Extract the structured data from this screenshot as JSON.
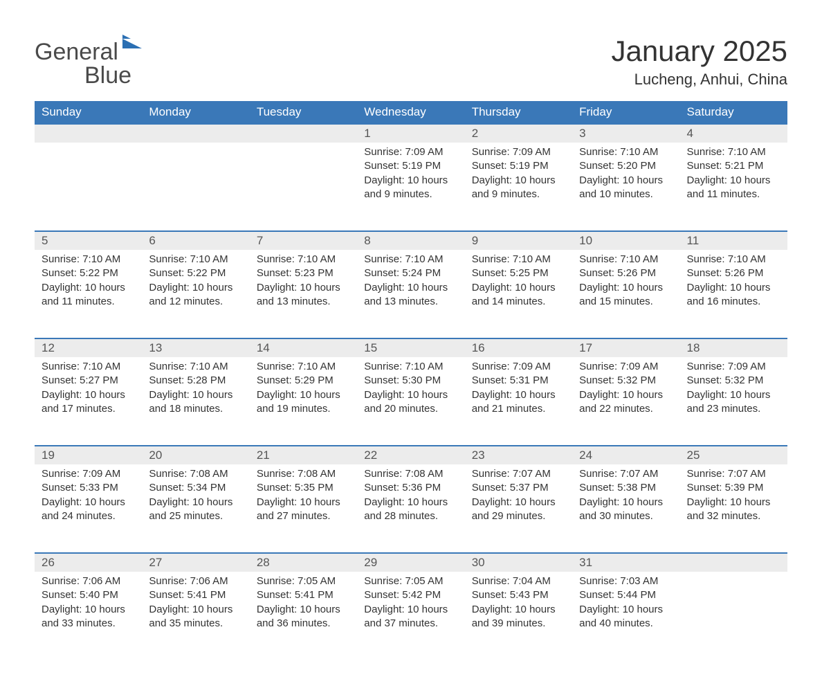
{
  "logo": {
    "word1": "General",
    "word2": "Blue"
  },
  "header": {
    "month_title": "January 2025",
    "location": "Lucheng, Anhui, China"
  },
  "colors": {
    "header_bg": "#3a78b8",
    "header_text": "#ffffff",
    "daynum_bg": "#ececec",
    "row_border": "#3a78b8",
    "body_text": "#333333",
    "logo_gray": "#4a4a4a",
    "logo_blue": "#2b6fb3"
  },
  "weekdays": [
    "Sunday",
    "Monday",
    "Tuesday",
    "Wednesday",
    "Thursday",
    "Friday",
    "Saturday"
  ],
  "weeks": [
    [
      null,
      null,
      null,
      {
        "day": "1",
        "sunrise": "Sunrise: 7:09 AM",
        "sunset": "Sunset: 5:19 PM",
        "daylight1": "Daylight: 10 hours",
        "daylight2": "and 9 minutes."
      },
      {
        "day": "2",
        "sunrise": "Sunrise: 7:09 AM",
        "sunset": "Sunset: 5:19 PM",
        "daylight1": "Daylight: 10 hours",
        "daylight2": "and 9 minutes."
      },
      {
        "day": "3",
        "sunrise": "Sunrise: 7:10 AM",
        "sunset": "Sunset: 5:20 PM",
        "daylight1": "Daylight: 10 hours",
        "daylight2": "and 10 minutes."
      },
      {
        "day": "4",
        "sunrise": "Sunrise: 7:10 AM",
        "sunset": "Sunset: 5:21 PM",
        "daylight1": "Daylight: 10 hours",
        "daylight2": "and 11 minutes."
      }
    ],
    [
      {
        "day": "5",
        "sunrise": "Sunrise: 7:10 AM",
        "sunset": "Sunset: 5:22 PM",
        "daylight1": "Daylight: 10 hours",
        "daylight2": "and 11 minutes."
      },
      {
        "day": "6",
        "sunrise": "Sunrise: 7:10 AM",
        "sunset": "Sunset: 5:22 PM",
        "daylight1": "Daylight: 10 hours",
        "daylight2": "and 12 minutes."
      },
      {
        "day": "7",
        "sunrise": "Sunrise: 7:10 AM",
        "sunset": "Sunset: 5:23 PM",
        "daylight1": "Daylight: 10 hours",
        "daylight2": "and 13 minutes."
      },
      {
        "day": "8",
        "sunrise": "Sunrise: 7:10 AM",
        "sunset": "Sunset: 5:24 PM",
        "daylight1": "Daylight: 10 hours",
        "daylight2": "and 13 minutes."
      },
      {
        "day": "9",
        "sunrise": "Sunrise: 7:10 AM",
        "sunset": "Sunset: 5:25 PM",
        "daylight1": "Daylight: 10 hours",
        "daylight2": "and 14 minutes."
      },
      {
        "day": "10",
        "sunrise": "Sunrise: 7:10 AM",
        "sunset": "Sunset: 5:26 PM",
        "daylight1": "Daylight: 10 hours",
        "daylight2": "and 15 minutes."
      },
      {
        "day": "11",
        "sunrise": "Sunrise: 7:10 AM",
        "sunset": "Sunset: 5:26 PM",
        "daylight1": "Daylight: 10 hours",
        "daylight2": "and 16 minutes."
      }
    ],
    [
      {
        "day": "12",
        "sunrise": "Sunrise: 7:10 AM",
        "sunset": "Sunset: 5:27 PM",
        "daylight1": "Daylight: 10 hours",
        "daylight2": "and 17 minutes."
      },
      {
        "day": "13",
        "sunrise": "Sunrise: 7:10 AM",
        "sunset": "Sunset: 5:28 PM",
        "daylight1": "Daylight: 10 hours",
        "daylight2": "and 18 minutes."
      },
      {
        "day": "14",
        "sunrise": "Sunrise: 7:10 AM",
        "sunset": "Sunset: 5:29 PM",
        "daylight1": "Daylight: 10 hours",
        "daylight2": "and 19 minutes."
      },
      {
        "day": "15",
        "sunrise": "Sunrise: 7:10 AM",
        "sunset": "Sunset: 5:30 PM",
        "daylight1": "Daylight: 10 hours",
        "daylight2": "and 20 minutes."
      },
      {
        "day": "16",
        "sunrise": "Sunrise: 7:09 AM",
        "sunset": "Sunset: 5:31 PM",
        "daylight1": "Daylight: 10 hours",
        "daylight2": "and 21 minutes."
      },
      {
        "day": "17",
        "sunrise": "Sunrise: 7:09 AM",
        "sunset": "Sunset: 5:32 PM",
        "daylight1": "Daylight: 10 hours",
        "daylight2": "and 22 minutes."
      },
      {
        "day": "18",
        "sunrise": "Sunrise: 7:09 AM",
        "sunset": "Sunset: 5:32 PM",
        "daylight1": "Daylight: 10 hours",
        "daylight2": "and 23 minutes."
      }
    ],
    [
      {
        "day": "19",
        "sunrise": "Sunrise: 7:09 AM",
        "sunset": "Sunset: 5:33 PM",
        "daylight1": "Daylight: 10 hours",
        "daylight2": "and 24 minutes."
      },
      {
        "day": "20",
        "sunrise": "Sunrise: 7:08 AM",
        "sunset": "Sunset: 5:34 PM",
        "daylight1": "Daylight: 10 hours",
        "daylight2": "and 25 minutes."
      },
      {
        "day": "21",
        "sunrise": "Sunrise: 7:08 AM",
        "sunset": "Sunset: 5:35 PM",
        "daylight1": "Daylight: 10 hours",
        "daylight2": "and 27 minutes."
      },
      {
        "day": "22",
        "sunrise": "Sunrise: 7:08 AM",
        "sunset": "Sunset: 5:36 PM",
        "daylight1": "Daylight: 10 hours",
        "daylight2": "and 28 minutes."
      },
      {
        "day": "23",
        "sunrise": "Sunrise: 7:07 AM",
        "sunset": "Sunset: 5:37 PM",
        "daylight1": "Daylight: 10 hours",
        "daylight2": "and 29 minutes."
      },
      {
        "day": "24",
        "sunrise": "Sunrise: 7:07 AM",
        "sunset": "Sunset: 5:38 PM",
        "daylight1": "Daylight: 10 hours",
        "daylight2": "and 30 minutes."
      },
      {
        "day": "25",
        "sunrise": "Sunrise: 7:07 AM",
        "sunset": "Sunset: 5:39 PM",
        "daylight1": "Daylight: 10 hours",
        "daylight2": "and 32 minutes."
      }
    ],
    [
      {
        "day": "26",
        "sunrise": "Sunrise: 7:06 AM",
        "sunset": "Sunset: 5:40 PM",
        "daylight1": "Daylight: 10 hours",
        "daylight2": "and 33 minutes."
      },
      {
        "day": "27",
        "sunrise": "Sunrise: 7:06 AM",
        "sunset": "Sunset: 5:41 PM",
        "daylight1": "Daylight: 10 hours",
        "daylight2": "and 35 minutes."
      },
      {
        "day": "28",
        "sunrise": "Sunrise: 7:05 AM",
        "sunset": "Sunset: 5:41 PM",
        "daylight1": "Daylight: 10 hours",
        "daylight2": "and 36 minutes."
      },
      {
        "day": "29",
        "sunrise": "Sunrise: 7:05 AM",
        "sunset": "Sunset: 5:42 PM",
        "daylight1": "Daylight: 10 hours",
        "daylight2": "and 37 minutes."
      },
      {
        "day": "30",
        "sunrise": "Sunrise: 7:04 AM",
        "sunset": "Sunset: 5:43 PM",
        "daylight1": "Daylight: 10 hours",
        "daylight2": "and 39 minutes."
      },
      {
        "day": "31",
        "sunrise": "Sunrise: 7:03 AM",
        "sunset": "Sunset: 5:44 PM",
        "daylight1": "Daylight: 10 hours",
        "daylight2": "and 40 minutes."
      },
      null
    ]
  ]
}
